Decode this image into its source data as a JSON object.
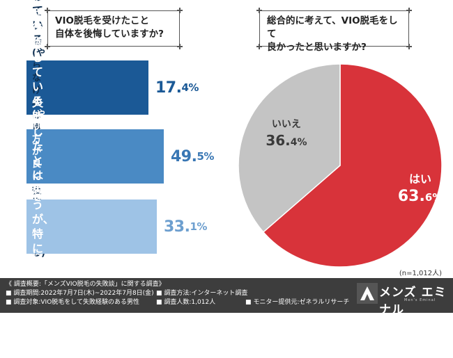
{
  "left_question": {
    "line1": "VIO脱毛を受けたこと",
    "line2": "自体を後悔していますか?"
  },
  "right_question": {
    "line1": "総合的に考えて、VIO脱毛をして",
    "line2": "良かったと思いますか?"
  },
  "left_bars": [
    {
      "main": "とても後悔している",
      "sub1": "(やらなければ良かったと",
      "sub2": "後悔している)",
      "pct_int": "17.",
      "pct_dec": "4%"
    },
    {
      "main": "やや後悔している",
      "sub1": "(やり方が良くなかったと",
      "sub2": "後悔している)",
      "pct_int": "49.",
      "pct_dec": "5%"
    },
    {
      "main1": "失敗したとは思うが、",
      "main2": "特に後悔はしていない",
      "pct_int": "33.",
      "pct_dec": "1%"
    }
  ],
  "chart_data": [
    {
      "type": "bar",
      "orientation": "horizontal",
      "title": "VIO脱毛を受けたこと自体を後悔していますか?",
      "categories": [
        "とても後悔している",
        "やや後悔している",
        "失敗したとは思うが、特に後悔はしていない"
      ],
      "values": [
        17.4,
        49.5,
        33.1
      ],
      "unit": "%",
      "colors": [
        "#1b5996",
        "#4a8ac4",
        "#9ec3e6"
      ]
    },
    {
      "type": "pie",
      "title": "総合的に考えて、VIO脱毛をして良かったと思いますか?",
      "slices": [
        {
          "label": "はい",
          "value": 63.6,
          "value_int": "63.",
          "value_dec": "6%",
          "color": "#d8333a",
          "text_color": "#ffffff"
        },
        {
          "label": "いいえ",
          "value": 36.4,
          "value_int": "36.",
          "value_dec": "4%",
          "color": "#c4c4c4",
          "text_color": "#3a3a3a"
        }
      ],
      "start": "top",
      "direction": "clockwise",
      "sample_note": "(n=1,012人)"
    }
  ],
  "footer": {
    "title": "《 調査概要:「メンズVIO脱毛の失敗談」に関する調査》",
    "period": "■ 調査期間:2022年7月7日(木)~2022年7月8日(金)",
    "method": "■ 調査方法:インターネット調査",
    "target": "■ 調査対象:VIO脱毛をして失敗経験のある男性",
    "count": "■ 調査人数:1,012人",
    "provider": "■ モニター提供元:ゼネラルリサーチ",
    "logo_main": "メンズ エミナル",
    "logo_sub": "Men's Eminal"
  }
}
